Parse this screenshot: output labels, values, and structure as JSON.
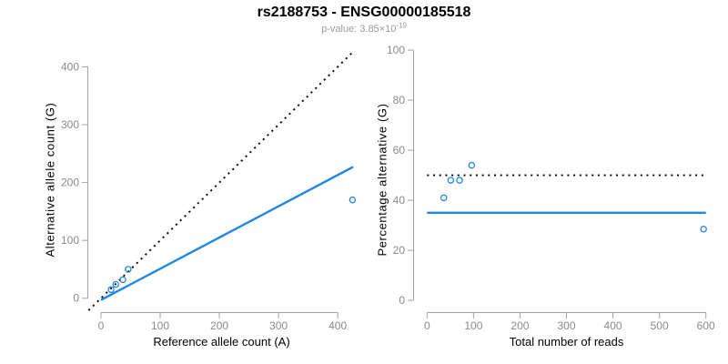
{
  "header": {
    "title": "rs2188753 - ENSG00000185518",
    "p_value_text": "p-value: 3.85×10",
    "p_value_exponent": "-19"
  },
  "colors": {
    "accent_blue": "#1E87E5",
    "identity_black": "#000000",
    "axis_line_gray": "#a3a3a3",
    "tick_text_gray": "#8a8a8a",
    "subtitle_gray": "#9a9a9a"
  },
  "chart_data": [
    {
      "type": "scatter",
      "name": "allele-counts-plot",
      "xlabel": "Reference allele count (A)",
      "ylabel": "Alternative allele count (G)",
      "xticks": [
        0,
        100,
        200,
        300,
        400
      ],
      "yticks": [
        0,
        100,
        200,
        300,
        400
      ],
      "xlim": [
        -21.5,
        429
      ],
      "ylim": [
        -24,
        429
      ],
      "grid": false,
      "point_style": "open-circle",
      "point_color": "#1E87E5",
      "points": [
        [
          17,
          15
        ],
        [
          25,
          24
        ],
        [
          37,
          32
        ],
        [
          46,
          50
        ],
        [
          425,
          170
        ]
      ],
      "lines": [
        {
          "name": "identity-line",
          "equation": "y=x",
          "style": "dotted",
          "color": "#000000",
          "from": [
            -21,
            -21
          ],
          "to": [
            428,
            428
          ]
        },
        {
          "name": "fit-line",
          "style": "solid",
          "color": "#1E87E5",
          "from": [
            0,
            -3
          ],
          "to": [
            426,
            227
          ]
        }
      ]
    },
    {
      "type": "scatter",
      "name": "percentage-alternative-plot",
      "xlabel": "Total number of reads",
      "ylabel": "Percentage alternative (G)",
      "xticks": [
        0,
        100,
        200,
        300,
        400,
        500,
        600
      ],
      "yticks": [
        0,
        20,
        40,
        60,
        80,
        100
      ],
      "xlim": [
        -28,
        628
      ],
      "ylim": [
        -4.7,
        100.4
      ],
      "grid": false,
      "point_style": "open-circle",
      "point_color": "#1E87E5",
      "points": [
        [
          36,
          41
        ],
        [
          51,
          48
        ],
        [
          70,
          48
        ],
        [
          96,
          54
        ],
        [
          595,
          28.5
        ]
      ],
      "lines": [
        {
          "name": "fifty-percent-line",
          "equation": "y=50",
          "style": "dotted",
          "color": "#000000",
          "from": [
            0,
            50
          ],
          "to": [
            600,
            50
          ]
        },
        {
          "name": "mean-percentage-line",
          "equation": "y=35",
          "style": "solid",
          "color": "#1E87E5",
          "from": [
            0,
            35
          ],
          "to": [
            600,
            35
          ]
        }
      ]
    }
  ]
}
